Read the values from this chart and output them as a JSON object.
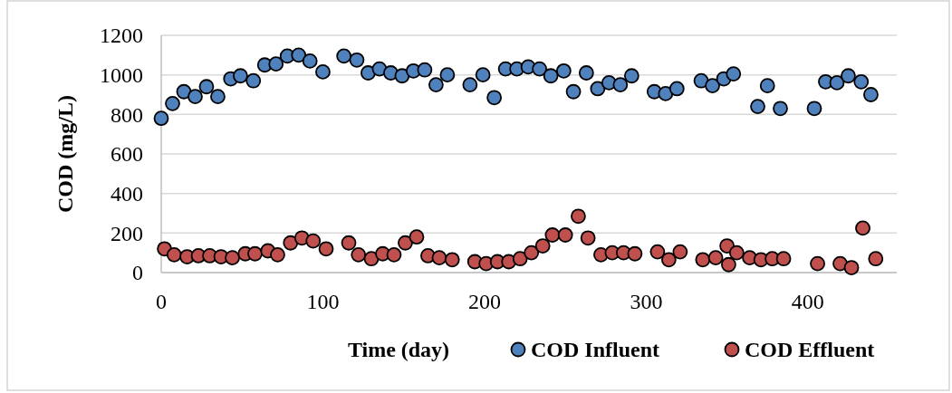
{
  "chart_data": {
    "type": "scatter",
    "xlabel": "Time (day)",
    "ylabel": "COD (mg/L)",
    "xlim": [
      0,
      455
    ],
    "xticks": [
      0,
      100,
      200,
      300,
      400
    ],
    "ylim": [
      0,
      1200
    ],
    "yticks": [
      0,
      200,
      400,
      600,
      800,
      1000,
      1200
    ],
    "grid": "y",
    "legend": "bottom",
    "marker": "circle",
    "series": [
      {
        "name": "COD Influent",
        "color": "#4f81bd",
        "x": [
          0,
          7,
          14,
          21,
          28,
          35,
          43,
          49,
          57,
          64,
          71,
          78,
          85,
          92,
          100,
          113,
          121,
          128,
          135,
          142,
          149,
          156,
          163,
          170,
          177,
          191,
          199,
          206,
          213,
          220,
          227,
          234,
          241,
          249,
          255,
          263,
          270,
          277,
          284,
          291,
          305,
          312,
          319,
          334,
          341,
          348,
          354,
          369,
          375,
          383,
          404,
          411,
          418,
          425,
          433,
          439
        ],
        "values": [
          780,
          855,
          915,
          890,
          940,
          890,
          980,
          995,
          970,
          1050,
          1055,
          1095,
          1100,
          1070,
          1015,
          1095,
          1075,
          1010,
          1030,
          1010,
          995,
          1020,
          1025,
          950,
          1000,
          950,
          1000,
          885,
          1030,
          1030,
          1040,
          1030,
          995,
          1020,
          915,
          1010,
          930,
          960,
          950,
          995,
          915,
          905,
          930,
          970,
          945,
          980,
          1005,
          840,
          945,
          830,
          830,
          965,
          960,
          995,
          965,
          900
        ]
      },
      {
        "name": "COD Effluent",
        "color": "#c0504d",
        "x": [
          2,
          8,
          16,
          23,
          30,
          37,
          44,
          52,
          58,
          66,
          72,
          80,
          87,
          94,
          102,
          116,
          122,
          130,
          137,
          144,
          151,
          158,
          165,
          172,
          180,
          194,
          201,
          208,
          215,
          222,
          229,
          236,
          242,
          250,
          258,
          264,
          272,
          279,
          286,
          293,
          307,
          314,
          321,
          335,
          343,
          350,
          351,
          356,
          364,
          371,
          378,
          385,
          406,
          420,
          427,
          434,
          442
        ],
        "values": [
          120,
          90,
          80,
          85,
          85,
          80,
          75,
          95,
          95,
          110,
          90,
          150,
          175,
          160,
          120,
          150,
          90,
          70,
          95,
          90,
          150,
          180,
          85,
          75,
          65,
          55,
          45,
          55,
          55,
          70,
          100,
          135,
          190,
          190,
          285,
          175,
          90,
          100,
          100,
          95,
          105,
          65,
          105,
          65,
          75,
          135,
          40,
          100,
          75,
          65,
          70,
          70,
          45,
          45,
          25,
          225,
          70
        ]
      }
    ]
  }
}
